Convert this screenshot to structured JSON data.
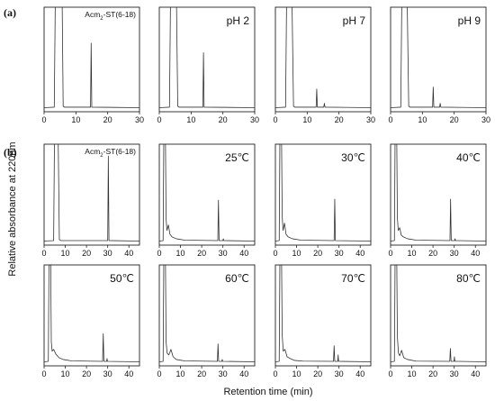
{
  "figure": {
    "ylabel": "Relative absorbance  at 220nm",
    "xlabel": "Retention time (min)",
    "part_labels": [
      "(a)",
      "(b)"
    ]
  },
  "chart_data": [
    {
      "type": "line",
      "part": "(a)",
      "label": "Acm2-ST(6-18)",
      "label_base": "Acm",
      "label_sub": "2",
      "label_rest": "-ST(6-18)",
      "xlim": [
        0,
        30
      ],
      "xticks": [
        0,
        10,
        20,
        30
      ],
      "ylim": [
        0,
        1
      ],
      "trace": [
        [
          0,
          0.005
        ],
        [
          3.2,
          0.01
        ],
        [
          3.6,
          1.4
        ],
        [
          5.6,
          1.4
        ],
        [
          6.0,
          0.02
        ],
        [
          6.4,
          0.01
        ],
        [
          14.6,
          0.01
        ],
        [
          14.8,
          0.68
        ],
        [
          15.0,
          0.01
        ],
        [
          30,
          0.005
        ]
      ]
    },
    {
      "type": "line",
      "part": "(a)",
      "label": "pH 2",
      "xlim": [
        0,
        30
      ],
      "xticks": [
        0,
        10,
        20,
        30
      ],
      "ylim": [
        0,
        1
      ],
      "trace": [
        [
          0,
          0.005
        ],
        [
          3.2,
          0.01
        ],
        [
          3.6,
          1.4
        ],
        [
          5.3,
          1.4
        ],
        [
          5.8,
          0.02
        ],
        [
          6.2,
          0.01
        ],
        [
          13.7,
          0.01
        ],
        [
          13.9,
          0.58
        ],
        [
          14.1,
          0.01
        ],
        [
          30,
          0.005
        ]
      ]
    },
    {
      "type": "line",
      "part": "(a)",
      "label": "pH 7",
      "xlim": [
        0,
        30
      ],
      "xticks": [
        0,
        10,
        20,
        30
      ],
      "ylim": [
        0,
        1
      ],
      "trace": [
        [
          0,
          0.005
        ],
        [
          3.2,
          0.01
        ],
        [
          3.6,
          1.4
        ],
        [
          5.1,
          1.4
        ],
        [
          5.7,
          0.02
        ],
        [
          6.1,
          0.01
        ],
        [
          12.8,
          0.01
        ],
        [
          13.0,
          0.2
        ],
        [
          13.2,
          0.01
        ],
        [
          15.2,
          0.01
        ],
        [
          15.4,
          0.05
        ],
        [
          15.6,
          0.01
        ],
        [
          30,
          0.005
        ]
      ]
    },
    {
      "type": "line",
      "part": "(a)",
      "label": "pH 9",
      "xlim": [
        0,
        30
      ],
      "xticks": [
        0,
        10,
        20,
        30
      ],
      "ylim": [
        0,
        1
      ],
      "trace": [
        [
          0,
          0.005
        ],
        [
          3.2,
          0.01
        ],
        [
          3.6,
          1.4
        ],
        [
          5.1,
          1.4
        ],
        [
          5.7,
          0.02
        ],
        [
          6.1,
          0.01
        ],
        [
          13.2,
          0.01
        ],
        [
          13.4,
          0.22
        ],
        [
          13.6,
          0.01
        ],
        [
          15.4,
          0.01
        ],
        [
          15.6,
          0.05
        ],
        [
          15.8,
          0.01
        ],
        [
          30,
          0.005
        ]
      ]
    },
    {
      "type": "line",
      "part": "(b)",
      "label": "Acm2-ST(6-18)",
      "label_base": "Acm",
      "label_sub": "2",
      "label_rest": "-ST(6-18)",
      "xlim": [
        0,
        45
      ],
      "xticks": [
        0,
        10,
        20,
        30,
        40
      ],
      "ylim": [
        0,
        1
      ],
      "trace": [
        [
          0,
          0.005
        ],
        [
          4.5,
          0.01
        ],
        [
          5.0,
          1.4
        ],
        [
          6.5,
          1.4
        ],
        [
          7.2,
          0.02
        ],
        [
          8,
          0.01
        ],
        [
          30.0,
          0.01
        ],
        [
          30.3,
          0.93
        ],
        [
          30.6,
          0.01
        ],
        [
          45,
          0.005
        ]
      ]
    },
    {
      "type": "line",
      "part": "(b)",
      "label": "25℃",
      "xlim": [
        0,
        45
      ],
      "xticks": [
        0,
        10,
        20,
        30,
        40
      ],
      "ylim": [
        0,
        1
      ],
      "trace": [
        [
          0,
          0.005
        ],
        [
          1.8,
          0.01
        ],
        [
          2.2,
          1.4
        ],
        [
          2.8,
          1.4
        ],
        [
          3.2,
          0.25
        ],
        [
          3.6,
          0.12
        ],
        [
          4.3,
          0.18
        ],
        [
          5,
          0.08
        ],
        [
          6,
          0.05
        ],
        [
          8,
          0.03
        ],
        [
          12,
          0.015
        ],
        [
          27.6,
          0.01
        ],
        [
          27.9,
          0.45
        ],
        [
          28.2,
          0.01
        ],
        [
          30,
          0.01
        ],
        [
          30.2,
          0.03
        ],
        [
          30.4,
          0.01
        ],
        [
          45,
          0.005
        ]
      ]
    },
    {
      "type": "line",
      "part": "(b)",
      "label": "30℃",
      "xlim": [
        0,
        45
      ],
      "xticks": [
        0,
        10,
        20,
        30,
        40
      ],
      "ylim": [
        0,
        1
      ],
      "trace": [
        [
          0,
          0.005
        ],
        [
          1.8,
          0.01
        ],
        [
          2.2,
          1.4
        ],
        [
          2.8,
          1.4
        ],
        [
          3.2,
          0.28
        ],
        [
          3.6,
          0.12
        ],
        [
          4.3,
          0.2
        ],
        [
          5,
          0.08
        ],
        [
          6,
          0.05
        ],
        [
          8,
          0.03
        ],
        [
          12,
          0.015
        ],
        [
          27.7,
          0.01
        ],
        [
          28.0,
          0.46
        ],
        [
          28.3,
          0.01
        ],
        [
          45,
          0.005
        ]
      ]
    },
    {
      "type": "line",
      "part": "(b)",
      "label": "40℃",
      "xlim": [
        0,
        45
      ],
      "xticks": [
        0,
        10,
        20,
        30,
        40
      ],
      "ylim": [
        0,
        1
      ],
      "trace": [
        [
          0,
          0.005
        ],
        [
          1.8,
          0.01
        ],
        [
          2.2,
          1.4
        ],
        [
          2.8,
          1.4
        ],
        [
          3.2,
          0.26
        ],
        [
          3.6,
          0.12
        ],
        [
          4.3,
          0.15
        ],
        [
          5,
          0.07
        ],
        [
          6,
          0.05
        ],
        [
          8,
          0.03
        ],
        [
          12,
          0.015
        ],
        [
          28.0,
          0.01
        ],
        [
          28.3,
          0.46
        ],
        [
          28.6,
          0.01
        ],
        [
          30.2,
          0.01
        ],
        [
          30.4,
          0.03
        ],
        [
          30.6,
          0.01
        ],
        [
          45,
          0.005
        ]
      ]
    },
    {
      "type": "line",
      "part": "(b)",
      "label": "50℃",
      "xlim": [
        0,
        45
      ],
      "xticks": [
        0,
        10,
        20,
        30,
        40
      ],
      "ylim": [
        0,
        1
      ],
      "trace": [
        [
          0,
          0.005
        ],
        [
          2.0,
          0.01
        ],
        [
          2.4,
          1.4
        ],
        [
          3.0,
          1.4
        ],
        [
          3.4,
          0.22
        ],
        [
          3.8,
          0.12
        ],
        [
          4.5,
          0.14
        ],
        [
          5.5,
          0.09
        ],
        [
          7,
          0.05
        ],
        [
          9,
          0.03
        ],
        [
          13,
          0.015
        ],
        [
          27.6,
          0.01
        ],
        [
          27.9,
          0.31
        ],
        [
          28.2,
          0.01
        ],
        [
          29.5,
          0.01
        ],
        [
          29.7,
          0.04
        ],
        [
          29.9,
          0.01
        ],
        [
          45,
          0.005
        ]
      ]
    },
    {
      "type": "line",
      "part": "(b)",
      "label": "60℃",
      "xlim": [
        0,
        45
      ],
      "xticks": [
        0,
        10,
        20,
        30,
        40
      ],
      "ylim": [
        0,
        1
      ],
      "trace": [
        [
          0,
          0.005
        ],
        [
          1.8,
          0.01
        ],
        [
          2.2,
          1.4
        ],
        [
          2.8,
          1.4
        ],
        [
          3.2,
          0.22
        ],
        [
          3.7,
          0.1
        ],
        [
          4.5,
          0.08
        ],
        [
          5.5,
          0.14
        ],
        [
          6.5,
          0.06
        ],
        [
          8,
          0.03
        ],
        [
          12,
          0.015
        ],
        [
          27.4,
          0.01
        ],
        [
          27.7,
          0.2
        ],
        [
          28.0,
          0.01
        ],
        [
          29.5,
          0.01
        ],
        [
          29.7,
          0.03
        ],
        [
          29.9,
          0.01
        ],
        [
          45,
          0.005
        ]
      ]
    },
    {
      "type": "line",
      "part": "(b)",
      "label": "70℃",
      "xlim": [
        0,
        45
      ],
      "xticks": [
        0,
        10,
        20,
        30,
        40
      ],
      "ylim": [
        0,
        1
      ],
      "trace": [
        [
          0,
          0.005
        ],
        [
          1.8,
          0.01
        ],
        [
          2.2,
          1.4
        ],
        [
          2.8,
          1.4
        ],
        [
          3.2,
          0.3
        ],
        [
          3.7,
          0.12
        ],
        [
          4.5,
          0.14
        ],
        [
          5.5,
          0.06
        ],
        [
          7,
          0.04
        ],
        [
          9,
          0.02
        ],
        [
          13,
          0.012
        ],
        [
          27.4,
          0.01
        ],
        [
          27.7,
          0.18
        ],
        [
          28.0,
          0.01
        ],
        [
          29.4,
          0.01
        ],
        [
          29.6,
          0.08
        ],
        [
          29.8,
          0.01
        ],
        [
          45,
          0.005
        ]
      ]
    },
    {
      "type": "line",
      "part": "(b)",
      "label": "80℃",
      "xlim": [
        0,
        45
      ],
      "xticks": [
        0,
        10,
        20,
        30,
        40
      ],
      "ylim": [
        0,
        1
      ],
      "trace": [
        [
          0,
          0.005
        ],
        [
          1.8,
          0.01
        ],
        [
          2.2,
          1.4
        ],
        [
          2.8,
          1.4
        ],
        [
          3.2,
          0.28
        ],
        [
          3.7,
          0.1
        ],
        [
          4.3,
          0.07
        ],
        [
          5.2,
          0.13
        ],
        [
          6.2,
          0.05
        ],
        [
          8,
          0.03
        ],
        [
          12,
          0.012
        ],
        [
          27.9,
          0.01
        ],
        [
          28.2,
          0.15
        ],
        [
          28.5,
          0.01
        ],
        [
          29.9,
          0.01
        ],
        [
          30.1,
          0.06
        ],
        [
          30.3,
          0.01
        ],
        [
          45,
          0.005
        ]
      ]
    }
  ]
}
